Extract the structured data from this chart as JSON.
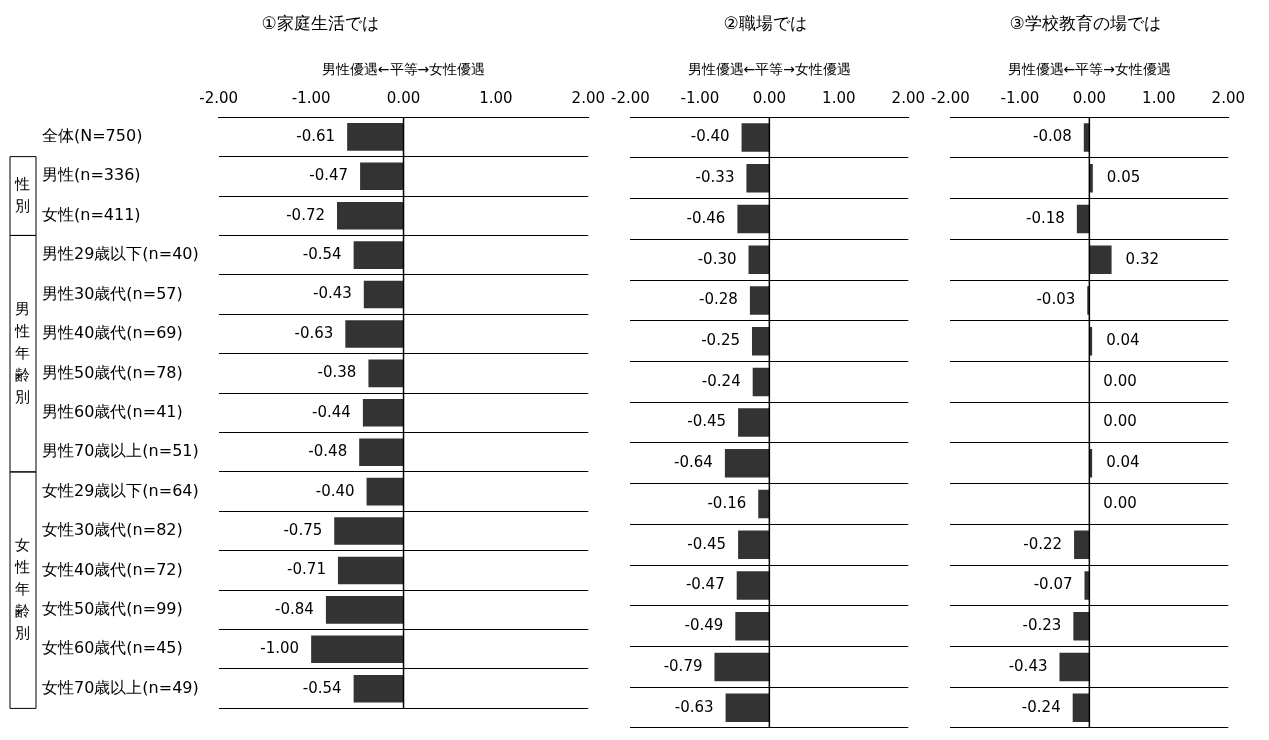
{
  "chart_data": [
    {
      "type": "bar",
      "orientation": "horizontal",
      "title": "①家庭生活では",
      "xlabel": "男性優遇←平等→女性優遇",
      "categories": [
        "全体(N=750)",
        "男性(n=336)",
        "女性(n=411)",
        "男性29歳以下(n=40)",
        "男性30歳代(n=57)",
        "男性40歳代(n=69)",
        "男性50歳代(n=78)",
        "男性60歳代(n=41)",
        "男性70歳以上(n=51)",
        "女性29歳以下(n=64)",
        "女性30歳代(n=82)",
        "女性40歳代(n=72)",
        "女性50歳代(n=99)",
        "女性60歳代(n=45)",
        "女性70歳以上(n=49)"
      ],
      "values": [
        -0.61,
        -0.47,
        -0.72,
        -0.54,
        -0.43,
        -0.63,
        -0.38,
        -0.44,
        -0.48,
        -0.4,
        -0.75,
        -0.71,
        -0.84,
        -1.0,
        -0.54
      ],
      "value_labels": [
        "-0.61",
        "-0.47",
        "-0.72",
        "-0.54",
        "-0.43",
        "-0.63",
        "-0.38",
        "-0.44",
        "-0.48",
        "-0.40",
        "-0.75",
        "-0.71",
        "-0.84",
        "-1.00",
        "-0.54"
      ],
      "color": "#333333",
      "xlim": [
        -2,
        2
      ],
      "xticks": [
        {
          "value": -2,
          "label": "-2.00"
        },
        {
          "value": -1,
          "label": "-1.00"
        },
        {
          "value": 0,
          "label": "0.00"
        },
        {
          "value": 1,
          "label": "1.00"
        },
        {
          "value": 2,
          "label": "2.00"
        }
      ],
      "ref_lines": [
        {
          "axis": "x",
          "value": 0,
          "color": "#000000"
        }
      ],
      "annotations": [
        "性別",
        "男性年齢別",
        "女性年齢別"
      ],
      "grid": "y",
      "legend": false
    },
    {
      "type": "bar",
      "orientation": "horizontal",
      "title": "②職場では",
      "xlabel": "男性優遇←平等→女性優遇",
      "categories": [
        null,
        null,
        null,
        null,
        null,
        null,
        null,
        null,
        null,
        null,
        null,
        null,
        null,
        null,
        null
      ],
      "values": [
        -0.4,
        -0.33,
        -0.46,
        -0.3,
        -0.28,
        -0.25,
        -0.24,
        -0.45,
        -0.64,
        -0.16,
        -0.45,
        -0.47,
        -0.49,
        -0.79,
        -0.63
      ],
      "value_labels": [
        "-0.40",
        "-0.33",
        "-0.46",
        "-0.30",
        "-0.28",
        "-0.25",
        "-0.24",
        "-0.45",
        "-0.64",
        "-0.16",
        "-0.45",
        "-0.47",
        "-0.49",
        "-0.79",
        "-0.63"
      ],
      "color": "#333333",
      "xlim": [
        -2,
        2
      ],
      "xticks": [
        {
          "value": -2,
          "label": "-2.00"
        },
        {
          "value": -1,
          "label": "-1.00"
        },
        {
          "value": 0,
          "label": "0.00"
        },
        {
          "value": 1,
          "label": "1.00"
        },
        {
          "value": 2,
          "label": "2.00"
        }
      ],
      "ref_lines": [
        {
          "axis": "x",
          "value": 0,
          "color": "#000000"
        }
      ],
      "grid": "y",
      "legend": false,
      "tick_labels": "x"
    },
    {
      "type": "bar",
      "orientation": "horizontal",
      "title": "③学校教育の場では",
      "xlabel": "男性優遇←平等→女性優遇",
      "categories": [
        null,
        null,
        null,
        null,
        null,
        null,
        null,
        null,
        null,
        null,
        null,
        null,
        null,
        null,
        null
      ],
      "values": [
        -0.08,
        0.05,
        -0.18,
        0.32,
        -0.03,
        0.04,
        0.0,
        0.0,
        0.04,
        0.0,
        -0.22,
        -0.07,
        -0.23,
        -0.43,
        -0.24
      ],
      "value_labels": [
        "-0.08",
        "0.05",
        "-0.18",
        "0.32",
        "-0.03",
        "0.04",
        "0.00",
        "0.00",
        "0.04",
        "0.00",
        "-0.22",
        "-0.07",
        "-0.23",
        "-0.43",
        "-0.24"
      ],
      "color": "#333333",
      "xlim": [
        -2,
        2
      ],
      "xticks": [
        {
          "value": -2,
          "label": "-2.00"
        },
        {
          "value": -1,
          "label": "-1.00"
        },
        {
          "value": 0,
          "label": "0.00"
        },
        {
          "value": 1,
          "label": "1.00"
        },
        {
          "value": 2,
          "label": "2.00"
        }
      ],
      "ref_lines": [
        {
          "axis": "x",
          "value": 0,
          "color": "#000000"
        }
      ],
      "grid": "y",
      "legend": false,
      "tick_labels": "x"
    }
  ]
}
